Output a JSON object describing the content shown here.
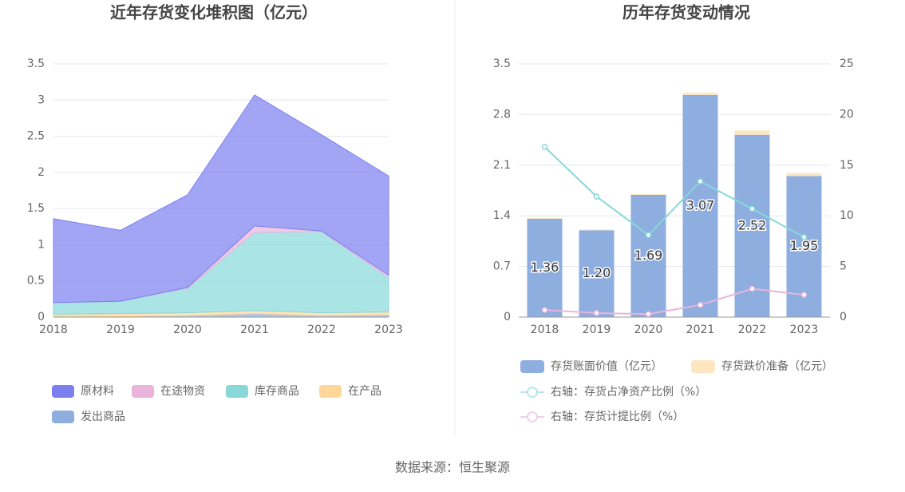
{
  "chart_data": [
    {
      "type": "area",
      "stacked": true,
      "title": "近年存货变化堆积图（亿元）",
      "categories": [
        "2018",
        "2019",
        "2020",
        "2021",
        "2022",
        "2023"
      ],
      "series": [
        {
          "name": "原材料",
          "color": "#7b7ff0",
          "values": [
            1.16,
            0.98,
            1.28,
            1.81,
            1.33,
            1.37
          ]
        },
        {
          "name": "在途物资",
          "color": "#e8b4dc",
          "values": [
            0.0,
            0.0,
            0.01,
            0.09,
            0.01,
            0.03
          ]
        },
        {
          "name": "库存商品",
          "color": "#88d8d8",
          "values": [
            0.16,
            0.17,
            0.34,
            1.08,
            1.12,
            0.48
          ]
        },
        {
          "name": "在产品",
          "color": "#fdd89a",
          "values": [
            0.03,
            0.04,
            0.04,
            0.04,
            0.04,
            0.04
          ]
        },
        {
          "name": "发出商品",
          "color": "#8eaee0",
          "values": [
            0.01,
            0.01,
            0.02,
            0.05,
            0.02,
            0.03
          ]
        }
      ],
      "ylim": [
        0,
        3.5
      ],
      "yticks": [
        0,
        0.5,
        1,
        1.5,
        2,
        2.5,
        3,
        3.5
      ],
      "grid": true
    },
    {
      "type": "bar",
      "stacked": true,
      "title": "历年存货变动情况",
      "categories": [
        "2018",
        "2019",
        "2020",
        "2021",
        "2022",
        "2023"
      ],
      "series": [
        {
          "name": "存货账面价值（亿元）",
          "color": "#8eaee0",
          "values": [
            1.36,
            1.2,
            1.69,
            3.07,
            2.52,
            1.95
          ],
          "value_labels": [
            "1.36",
            "1.20",
            "1.69",
            "3.07",
            "2.52",
            "1.95"
          ]
        },
        {
          "name": "存货跌价准备（亿元）",
          "color": "#fde6c0",
          "values": [
            0.01,
            0.01,
            0.01,
            0.03,
            0.06,
            0.04
          ]
        },
        {
          "name": "右轴：存货占净资产比例（%）",
          "type": "line",
          "axis": "y2",
          "color": "#88d8d8",
          "values": [
            16.8,
            11.9,
            8.1,
            13.4,
            10.7,
            7.9
          ]
        },
        {
          "name": "右轴：存货计提比例（%）",
          "type": "line",
          "axis": "y2",
          "color": "#e8b4dc",
          "values": [
            0.7,
            0.4,
            0.3,
            1.2,
            2.8,
            2.2
          ]
        }
      ],
      "ylim": [
        0,
        3.5
      ],
      "yticks": [
        0,
        0.7,
        1.4,
        2.1,
        2.8,
        3.5
      ],
      "y2lim": [
        0,
        25
      ],
      "y2ticks": [
        0,
        5,
        10,
        15,
        20,
        25
      ],
      "grid": true
    }
  ],
  "source": "数据来源：恒生聚源"
}
